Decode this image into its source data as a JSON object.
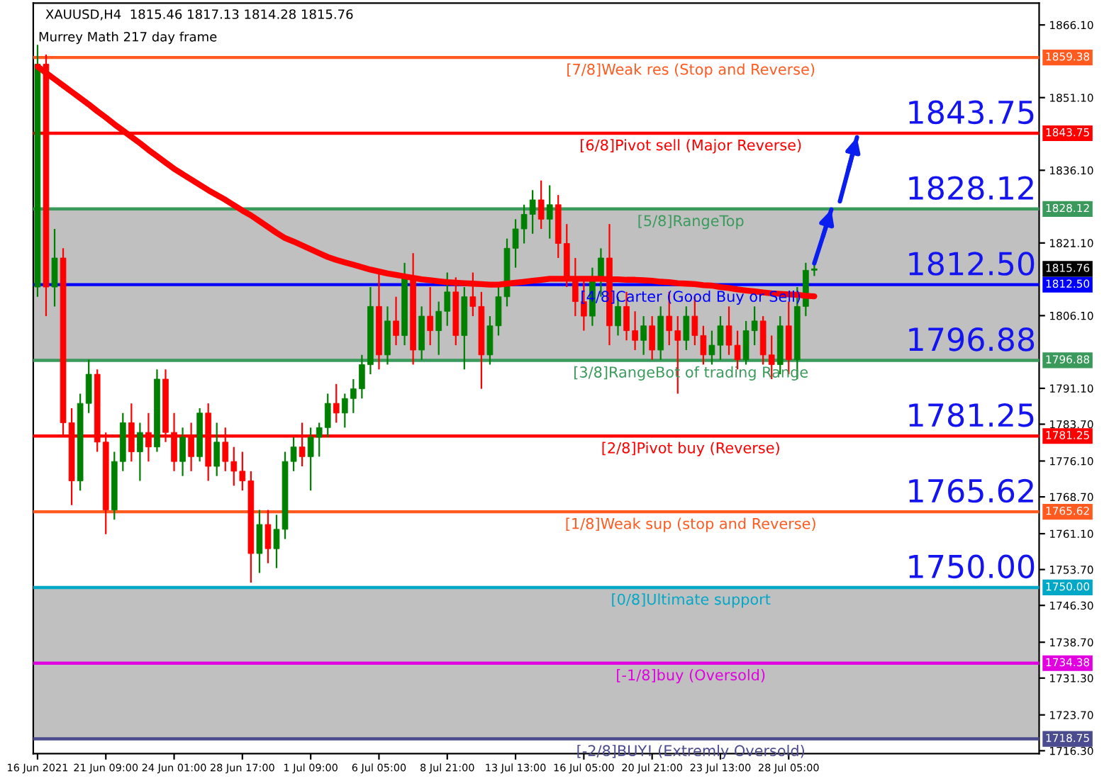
{
  "chart_data": {
    "type": "candlestick",
    "title": "XAUUSD,H4  1815.46 1817.13 1814.28 1815.76",
    "subtitle": "Murrey Math 217 day frame",
    "categories": [
      "16 Jun 2021",
      null,
      null,
      null,
      null,
      null,
      null,
      null,
      "21 Jun 09:00",
      null,
      null,
      null,
      null,
      null,
      null,
      null,
      "24 Jun 01:00",
      null,
      null,
      null,
      null,
      null,
      null,
      null,
      "28 Jun 17:00",
      null,
      null,
      null,
      null,
      null,
      null,
      null,
      "1 Jul 09:00",
      null,
      null,
      null,
      null,
      null,
      null,
      null,
      "6 Jul 05:00",
      null,
      null,
      null,
      null,
      null,
      null,
      null,
      "8 Jul 21:00",
      null,
      null,
      null,
      null,
      null,
      null,
      null,
      "13 Jul 13:00",
      null,
      null,
      null,
      null,
      null,
      null,
      null,
      "16 Jul 05:00",
      null,
      null,
      null,
      null,
      null,
      null,
      null,
      "20 Jul 21:00",
      null,
      null,
      null,
      null,
      null,
      null,
      null,
      "23 Jul 13:00",
      null,
      null,
      null,
      null,
      null,
      null,
      null,
      "28 Jul 05:00",
      null,
      null,
      null,
      null,
      null,
      null,
      null,
      null
    ],
    "ylim": [
      1715.7,
      1870.6
    ],
    "yticks": [
      {
        "value": 1866.1,
        "label": "1866.10"
      },
      {
        "value": 1851.1,
        "label": "1851.10"
      },
      {
        "value": 1836.1,
        "label": "1836.10"
      },
      {
        "value": 1821.1,
        "label": "1821.10"
      },
      {
        "value": 1806.1,
        "label": "1806.10"
      },
      {
        "value": 1791.1,
        "label": "1791.10"
      },
      {
        "value": 1783.7,
        "label": "1783.70"
      },
      {
        "value": 1776.1,
        "label": "1776.10"
      },
      {
        "value": 1768.7,
        "label": "1768.70"
      },
      {
        "value": 1761.1,
        "label": "1761.10"
      },
      {
        "value": 1753.7,
        "label": "1753.70"
      },
      {
        "value": 1746.3,
        "label": "1746.30"
      },
      {
        "value": 1738.7,
        "label": "1738.70"
      },
      {
        "value": 1731.3,
        "label": "1731.30"
      },
      {
        "value": 1723.7,
        "label": "1723.70"
      },
      {
        "value": 1716.3,
        "label": "1716.30"
      }
    ],
    "grid": false,
    "series": [
      {
        "ohlc": [
          [
            1812,
            1862,
            1810,
            1858
          ],
          [
            1858,
            1860,
            1806,
            1812
          ],
          [
            1812,
            1824,
            1808,
            1818
          ],
          [
            1818,
            1820,
            1781,
            1784
          ],
          [
            1784,
            1787,
            1767,
            1772
          ],
          [
            1772,
            1790,
            1770,
            1788
          ],
          [
            1788,
            1797,
            1786,
            1794
          ],
          [
            1794,
            1795,
            1778,
            1780
          ],
          [
            1780,
            1782,
            1761,
            1766
          ],
          [
            1766,
            1778,
            1764,
            1776
          ],
          [
            1776,
            1786,
            1774,
            1784
          ],
          [
            1784,
            1788,
            1776,
            1778
          ],
          [
            1778,
            1784,
            1772,
            1782
          ],
          [
            1782,
            1786,
            1776,
            1779
          ],
          [
            1779,
            1795,
            1778,
            1793
          ],
          [
            1793,
            1795,
            1780,
            1782
          ],
          [
            1782,
            1786,
            1774,
            1776
          ],
          [
            1776,
            1783,
            1773,
            1781
          ],
          [
            1781,
            1784,
            1774,
            1777
          ],
          [
            1777,
            1787,
            1776,
            1786
          ],
          [
            1786,
            1788,
            1772,
            1775
          ],
          [
            1775,
            1784,
            1773,
            1780
          ],
          [
            1780,
            1783,
            1774,
            1776
          ],
          [
            1776,
            1779,
            1771,
            1774
          ],
          [
            1774,
            1778,
            1770,
            1772
          ],
          [
            1772,
            1774,
            1751,
            1757
          ],
          [
            1757,
            1766,
            1753,
            1763
          ],
          [
            1763,
            1766,
            1755,
            1758
          ],
          [
            1758,
            1765,
            1754,
            1762
          ],
          [
            1762,
            1778,
            1760,
            1776
          ],
          [
            1776,
            1781,
            1774,
            1779
          ],
          [
            1779,
            1784,
            1775,
            1777
          ],
          [
            1777,
            1783,
            1770,
            1781
          ],
          [
            1781,
            1784,
            1777,
            1783
          ],
          [
            1783,
            1790,
            1781,
            1788
          ],
          [
            1788,
            1792,
            1784,
            1786
          ],
          [
            1786,
            1790,
            1783,
            1789
          ],
          [
            1789,
            1793,
            1786,
            1791
          ],
          [
            1791,
            1798,
            1789,
            1796
          ],
          [
            1796,
            1812,
            1794,
            1808
          ],
          [
            1808,
            1815,
            1795,
            1798
          ],
          [
            1798,
            1808,
            1796,
            1805
          ],
          [
            1805,
            1810,
            1800,
            1802
          ],
          [
            1802,
            1817,
            1800,
            1814
          ],
          [
            1814,
            1819,
            1796,
            1799
          ],
          [
            1799,
            1808,
            1797,
            1806
          ],
          [
            1806,
            1812,
            1800,
            1803
          ],
          [
            1803,
            1809,
            1798,
            1807
          ],
          [
            1807,
            1815,
            1804,
            1811
          ],
          [
            1811,
            1814,
            1800,
            1802
          ],
          [
            1802,
            1812,
            1795,
            1810
          ],
          [
            1810,
            1815,
            1806,
            1808
          ],
          [
            1808,
            1811,
            1791,
            1798
          ],
          [
            1798,
            1806,
            1796,
            1804
          ],
          [
            1804,
            1812,
            1802,
            1810
          ],
          [
            1810,
            1822,
            1808,
            1820
          ],
          [
            1820,
            1826,
            1816,
            1824
          ],
          [
            1824,
            1829,
            1821,
            1827
          ],
          [
            1827,
            1832,
            1823,
            1830
          ],
          [
            1830,
            1834,
            1824,
            1826
          ],
          [
            1826,
            1833,
            1822,
            1829
          ],
          [
            1829,
            1831,
            1818,
            1821
          ],
          [
            1821,
            1825,
            1812,
            1814
          ],
          [
            1814,
            1818,
            1806,
            1809
          ],
          [
            1809,
            1814,
            1803,
            1806
          ],
          [
            1806,
            1816,
            1804,
            1814
          ],
          [
            1814,
            1820,
            1810,
            1818
          ],
          [
            1818,
            1825,
            1800,
            1804
          ],
          [
            1804,
            1810,
            1802,
            1808
          ],
          [
            1808,
            1811,
            1801,
            1803
          ],
          [
            1803,
            1807,
            1799,
            1801
          ],
          [
            1801,
            1806,
            1798,
            1804
          ],
          [
            1804,
            1806,
            1797,
            1799
          ],
          [
            1799,
            1808,
            1797,
            1806
          ],
          [
            1806,
            1811,
            1800,
            1803
          ],
          [
            1803,
            1806,
            1790,
            1801
          ],
          [
            1801,
            1808,
            1799,
            1806
          ],
          [
            1806,
            1810,
            1800,
            1802
          ],
          [
            1802,
            1804,
            1796,
            1798
          ],
          [
            1798,
            1803,
            1796,
            1800
          ],
          [
            1800,
            1806,
            1797,
            1804
          ],
          [
            1804,
            1808,
            1798,
            1800
          ],
          [
            1800,
            1803,
            1795,
            1797
          ],
          [
            1797,
            1805,
            1796,
            1803
          ],
          [
            1803,
            1808,
            1800,
            1805
          ],
          [
            1805,
            1806,
            1796,
            1798
          ],
          [
            1798,
            1802,
            1793,
            1796
          ],
          [
            1796,
            1806,
            1794,
            1804
          ],
          [
            1804,
            1809,
            1794,
            1797
          ],
          [
            1797,
            1812,
            1793,
            1808
          ],
          [
            1808,
            1817,
            1806,
            1815.46
          ],
          [
            1815.46,
            1817.13,
            1814.28,
            1815.76
          ],
          null,
          null,
          null,
          null,
          null
        ]
      },
      {
        "type": "line",
        "color": "#ff0000",
        "values": [
          1857.5,
          1856.2,
          1854.9,
          1853.6,
          1852.3,
          1851.0,
          1849.7,
          1848.3,
          1847.0,
          1845.6,
          1844.3,
          1843.0,
          1841.7,
          1840.3,
          1839.0,
          1837.7,
          1836.4,
          1835.3,
          1834.2,
          1833.1,
          1832.0,
          1831.0,
          1830.0,
          1828.9,
          1827.8,
          1826.8,
          1825.6,
          1824.4,
          1823.2,
          1822.1,
          1821.4,
          1820.6,
          1819.8,
          1819.0,
          1818.2,
          1817.6,
          1817.1,
          1816.6,
          1816.1,
          1815.6,
          1815.2,
          1814.8,
          1814.5,
          1814.2,
          1813.9,
          1813.6,
          1813.4,
          1813.2,
          1813.0,
          1812.9,
          1812.8,
          1812.7,
          1812.6,
          1812.5,
          1812.5,
          1812.7,
          1812.9,
          1813.1,
          1813.3,
          1813.5,
          1813.7,
          1813.7,
          1813.7,
          1813.7,
          1813.7,
          1813.7,
          1813.7,
          1813.6,
          1813.6,
          1813.5,
          1813.5,
          1813.4,
          1813.3,
          1813.1,
          1813.0,
          1812.8,
          1812.7,
          1812.6,
          1812.4,
          1812.3,
          1812.0,
          1811.8,
          1811.5,
          1811.3,
          1811.1,
          1810.9,
          1810.7,
          1810.6,
          1810.5,
          1810.4,
          1810.2,
          1810.1,
          null,
          null,
          null,
          null,
          null
        ]
      },
      {
        "type": "line",
        "color": "#0a1ef0",
        "values": [
          null,
          null,
          null,
          null,
          null,
          null,
          null,
          null,
          null,
          null,
          null,
          null,
          null,
          null,
          null,
          null,
          null,
          null,
          null,
          null,
          null,
          null,
          null,
          null,
          null,
          null,
          null,
          null,
          null,
          null,
          null,
          null,
          null,
          null,
          null,
          null,
          null,
          null,
          null,
          null,
          null,
          null,
          null,
          null,
          null,
          null,
          null,
          null,
          null,
          null,
          null,
          null,
          null,
          null,
          null,
          null,
          null,
          null,
          null,
          null,
          null,
          null,
          null,
          null,
          null,
          null,
          null,
          null,
          null,
          null,
          null,
          null,
          null,
          null,
          null,
          null,
          null,
          null,
          null,
          null,
          null,
          null,
          null,
          null,
          null,
          null,
          null,
          null,
          null,
          null,
          null,
          1816.9,
          1822.4,
          1828.0,
          null,
          null,
          null
        ]
      },
      {
        "type": "line",
        "color": "#0a1ef0",
        "values": [
          null,
          null,
          null,
          null,
          null,
          null,
          null,
          null,
          null,
          null,
          null,
          null,
          null,
          null,
          null,
          null,
          null,
          null,
          null,
          null,
          null,
          null,
          null,
          null,
          null,
          null,
          null,
          null,
          null,
          null,
          null,
          null,
          null,
          null,
          null,
          null,
          null,
          null,
          null,
          null,
          null,
          null,
          null,
          null,
          null,
          null,
          null,
          null,
          null,
          null,
          null,
          null,
          null,
          null,
          null,
          null,
          null,
          null,
          null,
          null,
          null,
          null,
          null,
          null,
          null,
          null,
          null,
          null,
          null,
          null,
          null,
          null,
          null,
          null,
          null,
          null,
          null,
          null,
          null,
          null,
          null,
          null,
          null,
          null,
          null,
          null,
          null,
          null,
          null,
          null,
          null,
          null,
          null,
          null,
          1829.7,
          1836.3,
          1842.9
        ]
      }
    ],
    "bands": [
      {
        "axis": "y",
        "from": 1796.88,
        "to": 1828.12,
        "color": "#c0c0c0"
      },
      {
        "axis": "y",
        "from": 1718.75,
        "to": 1750.0,
        "color": "#c0c0c0"
      }
    ],
    "ref_lines": [
      {
        "axis": "y",
        "value": 1859.38,
        "label": "[7/8]Weak res (Stop and Reverse)",
        "color": "#ff5a1f"
      },
      {
        "axis": "y",
        "value": 1843.75,
        "label": "[6/8]Pivot sell (Major Reverse)",
        "color": "#ff0000"
      },
      {
        "axis": "y",
        "value": 1828.12,
        "label": "[5/8]RangeTop",
        "color": "#3a9a5c"
      },
      {
        "axis": "y",
        "value": 1812.5,
        "label": "[4/8]Carter (Good Buy or Sell)",
        "color": "#0000ff"
      },
      {
        "axis": "y",
        "value": 1796.88,
        "label": "[3/8]RangeBot of trading Range",
        "color": "#3a9a5c"
      },
      {
        "axis": "y",
        "value": 1781.25,
        "label": "[2/8]Pivot buy (Reverse)",
        "color": "#ff0000"
      },
      {
        "axis": "y",
        "value": 1765.62,
        "label": "[1/8]Weak sup (stop and Reverse)",
        "color": "#ff5a1f"
      },
      {
        "axis": "y",
        "value": 1750.0,
        "label": "[0/8]Ultimate support",
        "color": "#00a8c8"
      },
      {
        "axis": "y",
        "value": 1734.38,
        "label": "[-1/8]buy (Oversold)",
        "color": "#e000e0"
      },
      {
        "axis": "y",
        "value": 1718.75,
        "label": "[-2/8]BUY! (Extremly Oversold)",
        "color": "#4b4b8f"
      }
    ],
    "annotations": [
      "1859.38",
      "1843.75",
      "1828.12",
      "1812.50",
      "1796.88",
      "1781.25",
      "1765.62",
      "1750.00",
      "1734.38",
      "1718.75",
      "1815.76",
      "1843.75",
      "1828.12",
      "1812.50",
      "1796.88",
      "1781.25",
      "1765.62",
      "1750.00"
    ]
  }
}
